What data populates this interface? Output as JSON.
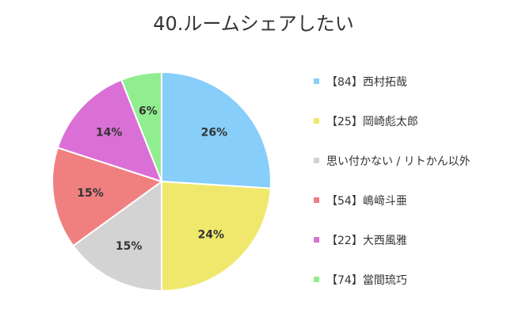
{
  "title": "40.ルームシェアしたい",
  "chart_data": {
    "type": "pie",
    "title": "40.ルームシェアしたい",
    "legend": "right",
    "slices": [
      {
        "name": "【84】西村拓哉",
        "value": 26,
        "label": "26%",
        "color": "#87cefa"
      },
      {
        "name": "【25】岡崎彪太郎",
        "value": 24,
        "label": "24%",
        "color": "#f0e86c"
      },
      {
        "name": "思い付かない / リトかん以外",
        "value": 15,
        "label": "15%",
        "color": "#d3d3d3"
      },
      {
        "name": "【54】嶋﨑斗亜",
        "value": 15,
        "label": "15%",
        "color": "#f08080"
      },
      {
        "name": "【22】大西風雅",
        "value": 14,
        "label": "14%",
        "color": "#da70d6"
      },
      {
        "name": "【74】當間琉巧",
        "value": 6,
        "label": "6%",
        "color": "#90ee90"
      }
    ]
  }
}
